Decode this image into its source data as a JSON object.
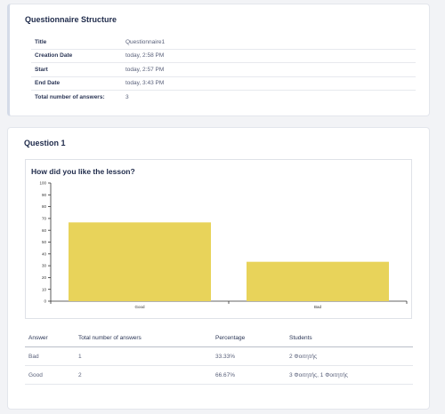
{
  "structure": {
    "title": "Questionnaire Structure",
    "rows": [
      {
        "key": "Title",
        "value": "Questionnaire1"
      },
      {
        "key": "Creation Date",
        "value": "today, 2:58 PM"
      },
      {
        "key": "Start",
        "value": "today, 2:57 PM"
      },
      {
        "key": "End Date",
        "value": "today, 3:43 PM"
      },
      {
        "key": "Total number of answers:",
        "value": "3"
      }
    ]
  },
  "question": {
    "title": "Question 1",
    "chart_title": "How did you like the lesson?",
    "table": {
      "headers": [
        "Answer",
        "Total number of answers",
        "Percentage",
        "Students"
      ],
      "rows": [
        [
          "Bad",
          "1",
          "33.33%",
          "2 Φοιτητής"
        ],
        [
          "Good",
          "2",
          "66.67%",
          "3 Φοιτητής, 1 Φοιτητής"
        ]
      ]
    }
  },
  "colors": {
    "bar": "#e8d35a",
    "accent": "#1e2a4a"
  },
  "chart_data": {
    "type": "bar",
    "title": "How did you like the lesson?",
    "categories": [
      "Good",
      "Bad"
    ],
    "values": [
      66.67,
      33.33
    ],
    "ylim": [
      0,
      100
    ],
    "yticks": [
      0,
      10,
      20,
      30,
      40,
      50,
      60,
      70,
      80,
      90,
      100
    ],
    "xlabel": "",
    "ylabel": "",
    "grid": false,
    "legend": "none"
  }
}
